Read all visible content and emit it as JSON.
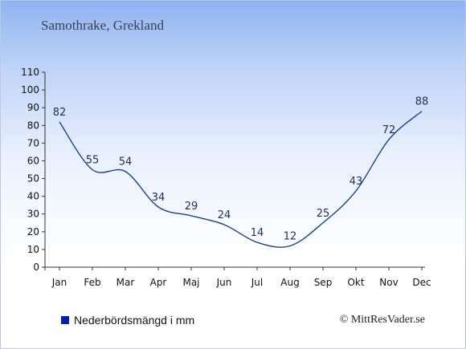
{
  "subtitle": "Samothrake, Grekland",
  "legend": {
    "label": "Nederbördsmängd i mm",
    "color": "#0a1ea8"
  },
  "copyright": "© MittResVader.se",
  "chart_data": {
    "type": "line",
    "title": "",
    "xlabel": "",
    "ylabel": "",
    "categories": [
      "Jan",
      "Feb",
      "Mar",
      "Apr",
      "Maj",
      "Jun",
      "Jul",
      "Aug",
      "Sep",
      "Okt",
      "Nov",
      "Dec"
    ],
    "series": [
      {
        "name": "Nederbördsmängd i mm",
        "values": [
          82,
          55,
          54,
          34,
          29,
          24,
          14,
          12,
          25,
          43,
          72,
          88
        ]
      }
    ],
    "ylim": [
      0,
      110
    ],
    "yticks": [
      0,
      10,
      20,
      30,
      40,
      50,
      60,
      70,
      80,
      90,
      100,
      110
    ],
    "line_color": "#1c3f8c",
    "grid": false,
    "legend_position": "bottom-left"
  }
}
